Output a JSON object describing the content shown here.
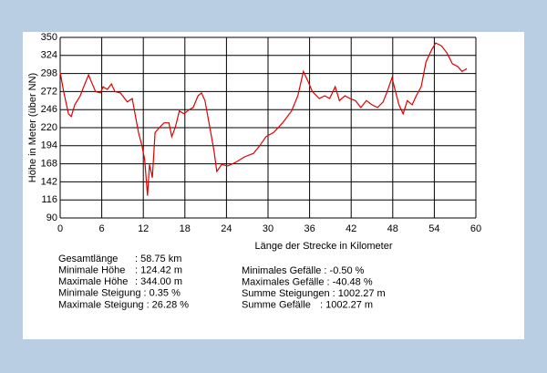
{
  "chart_data": {
    "type": "line",
    "ylabel": "Höhe in Meter (über NN)",
    "xlabel": "Länge der Strecke in Kilometer",
    "xlim": [
      0,
      60
    ],
    "xticks": [
      0,
      6,
      12,
      18,
      24,
      30,
      36,
      42,
      48,
      54,
      60
    ],
    "ylim": [
      90,
      350
    ],
    "yticks": [
      90,
      116,
      142,
      168,
      194,
      220,
      246,
      272,
      298,
      324,
      350
    ],
    "grid": true,
    "series": [
      {
        "color": "#e00000",
        "x": [
          0,
          0.5,
          1.2,
          1.6,
          2.1,
          2.9,
          3.4,
          4.1,
          4.5,
          5.1,
          5.8,
          6.2,
          6.8,
          7.4,
          7.9,
          8.7,
          9.7,
          10.4,
          10.8,
          11.3,
          11.8,
          12.2,
          12.6,
          12.9,
          13.3,
          13.7,
          14.3,
          15.0,
          15.7,
          16.1,
          16.6,
          17.2,
          17.9,
          18.6,
          19.2,
          19.9,
          20.4,
          20.9,
          21.6,
          22.2,
          22.6,
          23.3,
          24.2,
          25.3,
          26.6,
          27.9,
          28.8,
          29.7,
          30.8,
          32.1,
          33.4,
          34.3,
          35.1,
          35.8,
          36.4,
          37.4,
          38.2,
          38.9,
          39.7,
          40.3,
          41.1,
          41.8,
          42.6,
          43.4,
          44.2,
          45.0,
          45.8,
          46.6,
          47.2,
          47.9,
          48.4,
          48.9,
          49.5,
          50.1,
          50.8,
          51.4,
          52.1,
          52.8,
          53.6,
          54.2,
          55.0,
          55.8,
          56.6,
          57.4,
          58.0,
          58.7
        ],
        "values": [
          300,
          272,
          240,
          236,
          253,
          266,
          279,
          296,
          286,
          272,
          270,
          279,
          275,
          283,
          272,
          270,
          257,
          262,
          240,
          213,
          194,
          174,
          122,
          167,
          148,
          213,
          220,
          227,
          227,
          207,
          220,
          244,
          240,
          246,
          249,
          266,
          270,
          259,
          220,
          187,
          157,
          167,
          165,
          170,
          178,
          183,
          194,
          207,
          213,
          227,
          244,
          266,
          301,
          286,
          272,
          262,
          266,
          262,
          279,
          259,
          266,
          262,
          259,
          249,
          259,
          253,
          249,
          257,
          272,
          292,
          272,
          253,
          240,
          259,
          253,
          266,
          279,
          315,
          332,
          342,
          338,
          328,
          312,
          308,
          301,
          305
        ]
      }
    ]
  },
  "statistics": {
    "left": [
      {
        "label": "Gesamtlänge",
        "value": ": 58.75  km"
      },
      {
        "label": "Minimale Höhe",
        "value": ": 124.42 m"
      },
      {
        "label": "Maximale Höhe",
        "value": ": 344.00 m"
      },
      {
        "label": "Minimale Steigung",
        "value": ": 0.35 %"
      },
      {
        "label": "Maximale Steigung",
        "value": ": 26.28 %"
      }
    ],
    "right": [
      {
        "label": "Minimales Gefälle",
        "value": ": -0.50 %"
      },
      {
        "label": "Maximales Gefälle",
        "value": ": -40.48 %"
      },
      {
        "label": "Summe Steigungen",
        "value": ": 1002.27 m"
      },
      {
        "label": "Summe Gefälle",
        "value": ": 1002.27 m"
      }
    ]
  }
}
